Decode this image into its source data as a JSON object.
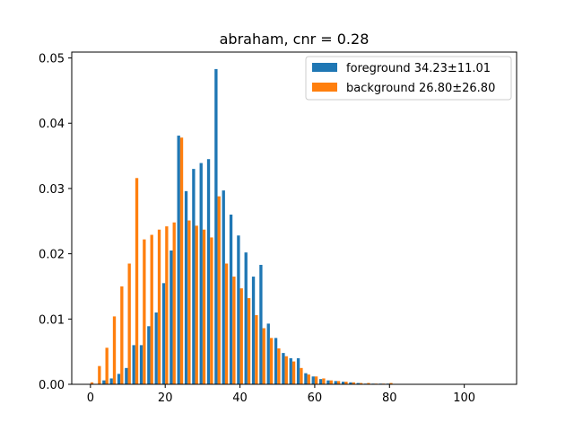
{
  "chart_data": {
    "type": "bar",
    "title": "abraham, cnr = 0.28",
    "xlabel": "",
    "ylabel": "",
    "xlim": [
      -5,
      114
    ],
    "ylim": [
      0,
      0.0509
    ],
    "xticks": [
      0,
      20,
      40,
      60,
      80,
      100
    ],
    "yticks": [
      0.0,
      0.01,
      0.02,
      0.03,
      0.04,
      0.05
    ],
    "ytick_labels": [
      "0.00",
      "0.01",
      "0.02",
      "0.03",
      "0.04",
      "0.05"
    ],
    "grid": false,
    "legend_position": "top-right",
    "bin_width": 2,
    "series": [
      {
        "name": "foreground 34.23±11.01",
        "color": "#1f77b4",
        "x": [
          0,
          2,
          4,
          6,
          8,
          10,
          12,
          14,
          16,
          18,
          20,
          22,
          24,
          26,
          28,
          30,
          32,
          34,
          36,
          38,
          40,
          42,
          44,
          46,
          48,
          50,
          52,
          54,
          56,
          58,
          60,
          62,
          64,
          66,
          68,
          70,
          72,
          74,
          76,
          78,
          80
        ],
        "values": [
          0.0,
          0.0,
          0.0006,
          0.0009,
          0.0016,
          0.0025,
          0.006,
          0.006,
          0.0089,
          0.011,
          0.0155,
          0.0205,
          0.0381,
          0.0296,
          0.033,
          0.0339,
          0.0345,
          0.0483,
          0.0297,
          0.026,
          0.0228,
          0.0202,
          0.0165,
          0.0183,
          0.0093,
          0.0071,
          0.0048,
          0.004,
          0.004,
          0.0017,
          0.0012,
          0.0008,
          0.0006,
          0.0005,
          0.0004,
          0.0003,
          0.0002,
          0.0001,
          0.0001,
          0.0001,
          0.0001
        ]
      },
      {
        "name": "background 26.80±26.80",
        "color": "#ff7f0e",
        "x": [
          0,
          2,
          4,
          6,
          8,
          10,
          12,
          14,
          16,
          18,
          20,
          22,
          24,
          26,
          28,
          30,
          32,
          34,
          36,
          38,
          40,
          42,
          44,
          46,
          48,
          50,
          52,
          54,
          56,
          58,
          60,
          62,
          64,
          66,
          68,
          70,
          72,
          74,
          76,
          78,
          80
        ],
        "values": [
          0.0003,
          0.0028,
          0.0056,
          0.0104,
          0.015,
          0.0185,
          0.0316,
          0.0222,
          0.0229,
          0.0237,
          0.0242,
          0.0248,
          0.0378,
          0.0251,
          0.0243,
          0.0237,
          0.0225,
          0.0288,
          0.0185,
          0.0165,
          0.0147,
          0.0132,
          0.0106,
          0.0086,
          0.0071,
          0.0055,
          0.0043,
          0.0035,
          0.0025,
          0.0015,
          0.0012,
          0.0009,
          0.0006,
          0.0005,
          0.0004,
          0.0003,
          0.0002,
          0.0002,
          0.0001,
          0.0001,
          0.0002
        ]
      }
    ]
  }
}
